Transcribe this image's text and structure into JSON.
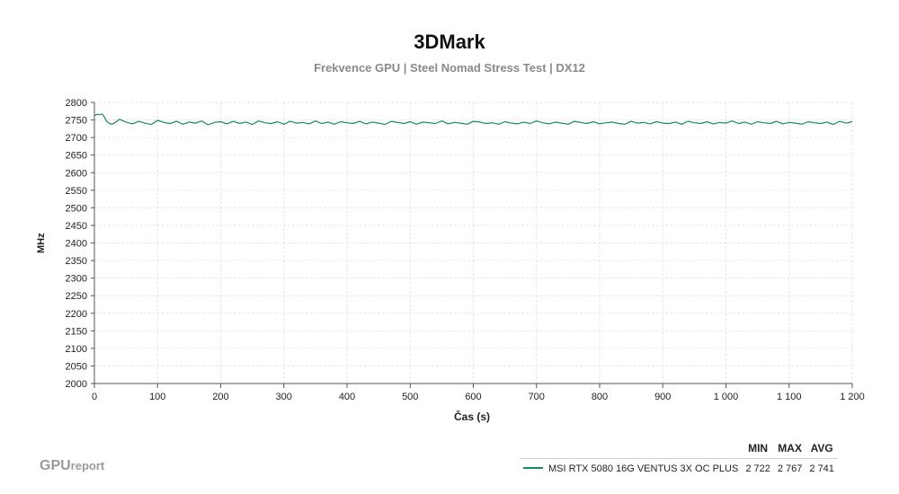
{
  "header": {
    "title": "3DMark",
    "subtitle": "Frekvence GPU | Steel Nomad Stress Test | DX12"
  },
  "brand": {
    "main": "GPU",
    "small": "report"
  },
  "legend": {
    "headers": [
      "MIN",
      "MAX",
      "AVG"
    ],
    "rows": [
      {
        "name": "MSI RTX 5080 16G VENTUS 3X OC PLUS",
        "min": "2 722",
        "max": "2 767",
        "avg": "2 741",
        "color": "#1a8a5a"
      }
    ]
  },
  "chart_data": {
    "type": "line",
    "xlabel": "Čas (s)",
    "ylabel": "MHz",
    "xlim": [
      0,
      1200
    ],
    "ylim": [
      2000,
      2800
    ],
    "xticks": [
      0,
      100,
      200,
      300,
      400,
      500,
      600,
      700,
      800,
      900,
      1000,
      1100,
      1200
    ],
    "xtick_labels": [
      "0",
      "100",
      "200",
      "300",
      "400",
      "500",
      "600",
      "700",
      "800",
      "900",
      "1 000",
      "1 100",
      "1 200"
    ],
    "yticks": [
      2000,
      2050,
      2100,
      2150,
      2200,
      2250,
      2300,
      2350,
      2400,
      2450,
      2500,
      2550,
      2600,
      2650,
      2700,
      2750,
      2800
    ],
    "grid": true,
    "series": [
      {
        "name": "MSI RTX 5080 16G VENTUS 3X OC PLUS",
        "color": "#1a8a5a",
        "x": [
          0,
          4,
          8,
          12,
          16,
          20,
          24,
          28,
          32,
          36,
          40,
          50,
          60,
          70,
          80,
          90,
          100,
          110,
          120,
          130,
          140,
          150,
          160,
          170,
          180,
          190,
          200,
          210,
          220,
          230,
          240,
          250,
          260,
          270,
          280,
          290,
          300,
          310,
          320,
          330,
          340,
          350,
          360,
          370,
          380,
          390,
          400,
          410,
          420,
          430,
          440,
          450,
          460,
          470,
          480,
          490,
          500,
          510,
          520,
          530,
          540,
          550,
          560,
          570,
          580,
          590,
          600,
          610,
          620,
          630,
          640,
          650,
          660,
          670,
          680,
          690,
          700,
          710,
          720,
          730,
          740,
          750,
          760,
          770,
          780,
          790,
          800,
          810,
          820,
          830,
          840,
          850,
          860,
          870,
          880,
          890,
          900,
          910,
          920,
          930,
          940,
          950,
          960,
          970,
          980,
          990,
          1000,
          1010,
          1020,
          1030,
          1040,
          1050,
          1060,
          1070,
          1080,
          1090,
          1100,
          1110,
          1120,
          1130,
          1140,
          1150,
          1160,
          1170,
          1180,
          1190,
          1200
        ],
        "y": [
          2762,
          2766,
          2765,
          2767,
          2758,
          2745,
          2740,
          2738,
          2742,
          2747,
          2752,
          2744,
          2739,
          2746,
          2741,
          2737,
          2749,
          2743,
          2740,
          2746,
          2738,
          2744,
          2741,
          2747,
          2736,
          2743,
          2745,
          2739,
          2746,
          2740,
          2744,
          2737,
          2747,
          2742,
          2740,
          2745,
          2738,
          2746,
          2741,
          2743,
          2739,
          2747,
          2740,
          2744,
          2738,
          2745,
          2742,
          2740,
          2746,
          2739,
          2744,
          2741,
          2737,
          2746,
          2743,
          2740,
          2745,
          2738,
          2744,
          2742,
          2740,
          2747,
          2739,
          2743,
          2741,
          2738,
          2746,
          2744,
          2740,
          2742,
          2738,
          2745,
          2741,
          2739,
          2744,
          2740,
          2747,
          2742,
          2739,
          2744,
          2741,
          2738,
          2746,
          2743,
          2740,
          2745,
          2739,
          2742,
          2744,
          2740,
          2738,
          2746,
          2741,
          2743,
          2739,
          2745,
          2741,
          2740,
          2744,
          2738,
          2746,
          2742,
          2740,
          2745,
          2739,
          2743,
          2741,
          2747,
          2740,
          2744,
          2738,
          2745,
          2742,
          2740,
          2746,
          2739,
          2743,
          2741,
          2738,
          2745,
          2742,
          2740,
          2744,
          2737,
          2746,
          2741,
          2745
        ]
      }
    ]
  }
}
